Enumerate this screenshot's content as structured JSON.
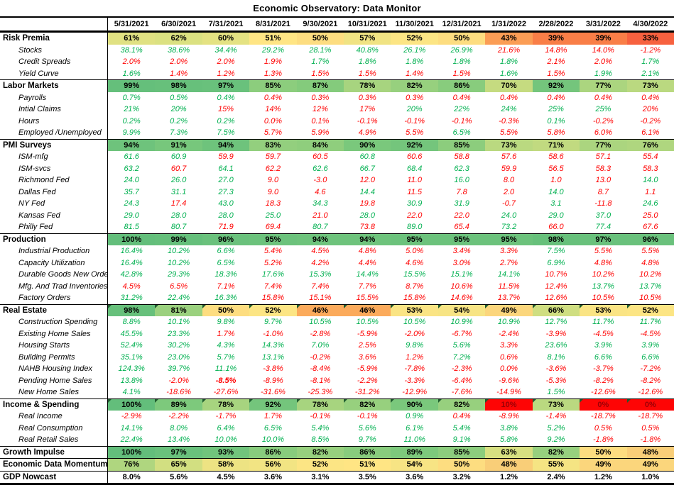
{
  "palette": {
    "up": "#00B050",
    "down": "#FF0000",
    "dark_red": "#9C0006",
    "heat_text": "#000000"
  },
  "heat_stops": [
    [
      0,
      "#FE0505"
    ],
    [
      10,
      "#FE0505"
    ],
    [
      33,
      "#F7613F"
    ],
    [
      39,
      "#F97E47"
    ],
    [
      43,
      "#FB9D55"
    ],
    [
      46,
      "#FBAA5B"
    ],
    [
      48,
      "#F9CE78"
    ],
    [
      51,
      "#FFE584"
    ],
    [
      58,
      "#EDE383"
    ],
    [
      63,
      "#D7E081"
    ],
    [
      70,
      "#C5DB80"
    ],
    [
      76,
      "#AFD67F"
    ],
    [
      82,
      "#97D07E"
    ],
    [
      88,
      "#80CA7C"
    ],
    [
      94,
      "#6EC37C"
    ],
    [
      100,
      "#63BE7B"
    ]
  ],
  "chart_data": {
    "type": "table",
    "title": "Economic Observatory: Data Monitor",
    "columns": [
      "5/31/2021",
      "6/30/2021",
      "7/31/2021",
      "8/31/2021",
      "9/30/2021",
      "10/31/2021",
      "11/30/2021",
      "12/31/2021",
      "1/31/2022",
      "2/28/2022",
      "3/31/2022",
      "4/30/2022"
    ],
    "rows": [
      {
        "label": "Risk Premia",
        "type": "heat",
        "section_start": true,
        "values": [
          61,
          62,
          60,
          51,
          50,
          57,
          52,
          50,
          43,
          39,
          39,
          33
        ]
      },
      {
        "label": "Stocks",
        "type": "detail",
        "values": [
          "38.1%",
          "38.6%",
          "34.4%",
          "29.2%",
          "28.1%",
          "40.8%",
          "26.1%",
          "26.9%",
          "21.6%",
          "14.8%",
          "14.0%",
          "-1.2%"
        ],
        "colors": [
          "g",
          "g",
          "g",
          "g",
          "g",
          "g",
          "g",
          "g",
          "r",
          "r",
          "r",
          "r"
        ]
      },
      {
        "label": "Credit Spreads",
        "type": "detail",
        "values": [
          "2.0%",
          "2.0%",
          "2.0%",
          "1.9%",
          "1.7%",
          "1.8%",
          "1.8%",
          "1.8%",
          "1.8%",
          "2.1%",
          "2.0%",
          "1.7%"
        ],
        "colors": [
          "r",
          "r",
          "r",
          "r",
          "g",
          "g",
          "g",
          "g",
          "g",
          "r",
          "r",
          "g"
        ]
      },
      {
        "label": "Yield Curve",
        "type": "detail",
        "values": [
          "1.6%",
          "1.4%",
          "1.2%",
          "1.3%",
          "1.5%",
          "1.5%",
          "1.4%",
          "1.5%",
          "1.6%",
          "1.5%",
          "1.9%",
          "2.1%"
        ],
        "colors": [
          "g",
          "r",
          "r",
          "r",
          "r",
          "r",
          "r",
          "r",
          "g",
          "r",
          "g",
          "g"
        ]
      },
      {
        "label": "Labor Markets",
        "type": "heat",
        "section_start": true,
        "values": [
          99,
          98,
          97,
          85,
          87,
          78,
          82,
          86,
          70,
          92,
          77,
          73
        ]
      },
      {
        "label": "Payrolls",
        "type": "detail",
        "values": [
          "0.7%",
          "0.5%",
          "0.4%",
          "0.4%",
          "0.3%",
          "0.3%",
          "0.3%",
          "0.4%",
          "0.4%",
          "0.4%",
          "0.4%",
          "0.4%"
        ],
        "colors": [
          "g",
          "g",
          "g",
          "r",
          "r",
          "r",
          "r",
          "r",
          "r",
          "r",
          "r",
          "r"
        ]
      },
      {
        "label": "Intial Claims",
        "type": "detail",
        "values": [
          "21%",
          "20%",
          "15%",
          "14%",
          "12%",
          "17%",
          "20%",
          "22%",
          "24%",
          "25%",
          "25%",
          "20%"
        ],
        "colors": [
          "g",
          "g",
          "r",
          "r",
          "r",
          "r",
          "g",
          "g",
          "g",
          "g",
          "g",
          "r"
        ]
      },
      {
        "label": "Hours",
        "type": "detail",
        "values": [
          "0.2%",
          "0.2%",
          "0.2%",
          "0.0%",
          "0.1%",
          "-0.1%",
          "-0.1%",
          "-0.1%",
          "-0.3%",
          "0.1%",
          "-0.2%",
          "-0.2%"
        ],
        "colors": [
          "g",
          "g",
          "g",
          "r",
          "r",
          "r",
          "r",
          "r",
          "r",
          "g",
          "r",
          "r"
        ]
      },
      {
        "label": "Employed /Unemployed",
        "type": "detail",
        "values": [
          "9.9%",
          "7.3%",
          "7.5%",
          "5.7%",
          "5.9%",
          "4.9%",
          "5.5%",
          "6.5%",
          "5.5%",
          "5.8%",
          "6.0%",
          "6.1%"
        ],
        "colors": [
          "g",
          "g",
          "g",
          "r",
          "r",
          "r",
          "r",
          "g",
          "r",
          "r",
          "r",
          "r"
        ]
      },
      {
        "label": "PMI Surveys",
        "type": "heat",
        "section_start": true,
        "values": [
          94,
          91,
          94,
          83,
          84,
          90,
          92,
          85,
          73,
          71,
          77,
          76
        ]
      },
      {
        "label": "ISM-mfg",
        "type": "detail",
        "values": [
          "61.6",
          "60.9",
          "59.9",
          "59.7",
          "60.5",
          "60.8",
          "60.6",
          "58.8",
          "57.6",
          "58.6",
          "57.1",
          "55.4"
        ],
        "colors": [
          "g",
          "g",
          "r",
          "r",
          "r",
          "g",
          "r",
          "r",
          "r",
          "r",
          "r",
          "r"
        ]
      },
      {
        "label": "ISM-svcs",
        "type": "detail",
        "values": [
          "63.2",
          "60.7",
          "64.1",
          "62.2",
          "62.6",
          "66.7",
          "68.4",
          "62.3",
          "59.9",
          "56.5",
          "58.3",
          "58.3"
        ],
        "colors": [
          "g",
          "r",
          "g",
          "r",
          "g",
          "g",
          "g",
          "g",
          "r",
          "r",
          "r",
          "r"
        ]
      },
      {
        "label": "Richmond Fed",
        "type": "detail",
        "values": [
          "24.0",
          "26.0",
          "27.0",
          "9.0",
          "-3.0",
          "12.0",
          "11.0",
          "16.0",
          "8.0",
          "1.0",
          "13.0",
          "14.0"
        ],
        "colors": [
          "g",
          "g",
          "g",
          "r",
          "r",
          "r",
          "r",
          "g",
          "r",
          "r",
          "r",
          "g"
        ]
      },
      {
        "label": "Dallas Fed",
        "type": "detail",
        "values": [
          "35.7",
          "31.1",
          "27.3",
          "9.0",
          "4.6",
          "14.4",
          "11.5",
          "7.8",
          "2.0",
          "14.0",
          "8.7",
          "1.1"
        ],
        "colors": [
          "g",
          "g",
          "g",
          "r",
          "r",
          "g",
          "r",
          "r",
          "r",
          "g",
          "r",
          "r"
        ]
      },
      {
        "label": "NY Fed",
        "type": "detail",
        "values": [
          "24.3",
          "17.4",
          "43.0",
          "18.3",
          "34.3",
          "19.8",
          "30.9",
          "31.9",
          "-0.7",
          "3.1",
          "-11.8",
          "24.6"
        ],
        "colors": [
          "g",
          "r",
          "g",
          "r",
          "g",
          "r",
          "g",
          "g",
          "r",
          "g",
          "r",
          "g"
        ]
      },
      {
        "label": "Kansas Fed",
        "type": "detail",
        "values": [
          "29.0",
          "28.0",
          "28.0",
          "25.0",
          "21.0",
          "28.0",
          "22.0",
          "22.0",
          "24.0",
          "29.0",
          "37.0",
          "25.0"
        ],
        "colors": [
          "g",
          "g",
          "g",
          "g",
          "r",
          "g",
          "r",
          "r",
          "g",
          "g",
          "g",
          "r"
        ]
      },
      {
        "label": "Philly Fed",
        "type": "detail",
        "values": [
          "81.5",
          "80.7",
          "71.9",
          "69.4",
          "80.7",
          "73.8",
          "89.0",
          "65.4",
          "73.2",
          "66.0",
          "77.4",
          "67.6"
        ],
        "colors": [
          "g",
          "g",
          "r",
          "r",
          "g",
          "r",
          "g",
          "r",
          "g",
          "r",
          "g",
          "r"
        ]
      },
      {
        "label": "Production",
        "type": "heat",
        "section_start": true,
        "values": [
          100,
          99,
          96,
          95,
          94,
          94,
          95,
          95,
          95,
          98,
          97,
          96
        ]
      },
      {
        "label": "Industrial Production",
        "type": "detail",
        "values": [
          "16.4%",
          "10.2%",
          "6.6%",
          "5.4%",
          "4.5%",
          "4.8%",
          "5.0%",
          "3.4%",
          "3.3%",
          "7.5%",
          "5.5%",
          "5.5%"
        ],
        "colors": [
          "g",
          "g",
          "g",
          "r",
          "r",
          "r",
          "r",
          "r",
          "r",
          "g",
          "r",
          "r"
        ]
      },
      {
        "label": "Capacity Utilization",
        "type": "detail",
        "values": [
          "16.4%",
          "10.2%",
          "6.5%",
          "5.2%",
          "4.2%",
          "4.4%",
          "4.6%",
          "3.0%",
          "2.7%",
          "6.9%",
          "4.8%",
          "4.8%"
        ],
        "colors": [
          "g",
          "g",
          "g",
          "r",
          "r",
          "r",
          "r",
          "r",
          "r",
          "g",
          "r",
          "r"
        ]
      },
      {
        "label": "Durable Goods New Orders",
        "type": "detail",
        "values": [
          "42.8%",
          "29.3%",
          "18.3%",
          "17.6%",
          "15.3%",
          "14.4%",
          "15.5%",
          "15.1%",
          "14.1%",
          "10.7%",
          "10.2%",
          "10.2%"
        ],
        "colors": [
          "g",
          "g",
          "g",
          "g",
          "g",
          "g",
          "g",
          "g",
          "g",
          "r",
          "r",
          "r"
        ]
      },
      {
        "label": "Mfg. And Trad Inventories",
        "type": "detail",
        "values": [
          "4.5%",
          "6.5%",
          "7.1%",
          "7.4%",
          "7.4%",
          "7.7%",
          "8.7%",
          "10.6%",
          "11.5%",
          "12.4%",
          "13.7%",
          "13.7%"
        ],
        "colors": [
          "r",
          "r",
          "r",
          "r",
          "r",
          "r",
          "r",
          "r",
          "r",
          "r",
          "g",
          "g"
        ]
      },
      {
        "label": "Factory Orders",
        "type": "detail",
        "values": [
          "31.2%",
          "22.4%",
          "16.3%",
          "15.8%",
          "15.1%",
          "15.5%",
          "15.8%",
          "14.6%",
          "13.7%",
          "12.6%",
          "10.5%",
          "10.5%"
        ],
        "colors": [
          "g",
          "g",
          "g",
          "r",
          "r",
          "r",
          "r",
          "r",
          "r",
          "r",
          "r",
          "r"
        ]
      },
      {
        "label": "Real Estate",
        "type": "heat",
        "section_start": true,
        "flags": true,
        "values": [
          98,
          81,
          50,
          52,
          46,
          46,
          53,
          54,
          49,
          66,
          53,
          52
        ]
      },
      {
        "label": "Construction Spending",
        "type": "detail",
        "values": [
          "8.8%",
          "10.1%",
          "9.8%",
          "9.7%",
          "10.5%",
          "10.5%",
          "10.5%",
          "10.9%",
          "10.9%",
          "12.7%",
          "11.7%",
          "11.7%"
        ],
        "colors": [
          "g",
          "g",
          "g",
          "g",
          "g",
          "g",
          "g",
          "g",
          "g",
          "g",
          "g",
          "g"
        ]
      },
      {
        "label": "Existing Home Sales",
        "type": "detail",
        "values": [
          "45.5%",
          "23.3%",
          "1.7%",
          "-1.0%",
          "-2.8%",
          "-5.9%",
          "-2.0%",
          "-6.7%",
          "-2.4%",
          "-3.9%",
          "-4.5%",
          "-4.5%"
        ],
        "colors": [
          "g",
          "g",
          "r",
          "r",
          "r",
          "r",
          "r",
          "r",
          "r",
          "r",
          "r",
          "r"
        ]
      },
      {
        "label": "Housing Starts",
        "type": "detail",
        "values": [
          "52.4%",
          "30.2%",
          "4.3%",
          "14.3%",
          "7.0%",
          "2.5%",
          "9.8%",
          "5.6%",
          "3.3%",
          "23.6%",
          "3.9%",
          "3.9%"
        ],
        "colors": [
          "g",
          "g",
          "g",
          "g",
          "g",
          "r",
          "g",
          "g",
          "r",
          "g",
          "g",
          "g"
        ]
      },
      {
        "label": "Building Permits",
        "type": "detail",
        "values": [
          "35.1%",
          "23.0%",
          "5.7%",
          "13.1%",
          "-0.2%",
          "3.6%",
          "1.2%",
          "7.2%",
          "0.6%",
          "8.1%",
          "6.6%",
          "6.6%"
        ],
        "colors": [
          "g",
          "g",
          "g",
          "g",
          "r",
          "r",
          "r",
          "g",
          "r",
          "g",
          "g",
          "g"
        ]
      },
      {
        "label": "NAHB Housing Index",
        "type": "detail",
        "values": [
          "124.3%",
          "39.7%",
          "11.1%",
          "-3.8%",
          "-8.4%",
          "-5.9%",
          "-7.8%",
          "-2.3%",
          "0.0%",
          "-3.6%",
          "-3.7%",
          "-7.2%"
        ],
        "colors": [
          "g",
          "g",
          "g",
          "r",
          "r",
          "r",
          "r",
          "r",
          "r",
          "r",
          "r",
          "r"
        ]
      },
      {
        "label": "Pending Home Sales",
        "type": "detail",
        "values": [
          "13.8%",
          "-2.0%",
          "-8.5%",
          "-8.9%",
          "-8.1%",
          "-2.2%",
          "-3.3%",
          "-6.4%",
          "-9.6%",
          "-5.3%",
          "-8.2%",
          "-8.2%"
        ],
        "colors": [
          "g",
          "r",
          "rb",
          "r",
          "r",
          "r",
          "r",
          "r",
          "r",
          "r",
          "r",
          "r"
        ]
      },
      {
        "label": "New Home Sales",
        "type": "detail",
        "values": [
          "4.1%",
          "-18.6%",
          "-27.6%",
          "-31.6%",
          "-25.3%",
          "-31.2%",
          "-12.9%",
          "-7.6%",
          "-14.9%",
          "1.5%",
          "-12.6%",
          "-12.6%"
        ],
        "colors": [
          "g",
          "r",
          "r",
          "r",
          "r",
          "r",
          "r",
          "r",
          "r",
          "g",
          "r",
          "r"
        ]
      },
      {
        "label": "Income & Spending",
        "type": "heat",
        "section_start": true,
        "flags": true,
        "values": [
          100,
          89,
          78,
          92,
          78,
          82,
          90,
          82,
          10,
          73,
          0,
          0
        ]
      },
      {
        "label": "Real Income",
        "type": "detail",
        "values": [
          "-2.9%",
          "-2.2%",
          "-1.7%",
          "1.7%",
          "-0.1%",
          "-0.1%",
          "0.9%",
          "0.4%",
          "-8.9%",
          "-1.4%",
          "-18.7%",
          "-18.7%"
        ],
        "colors": [
          "r",
          "r",
          "r",
          "r",
          "r",
          "r",
          "g",
          "r",
          "r",
          "r",
          "r",
          "r"
        ]
      },
      {
        "label": "Real Consumption",
        "type": "detail",
        "values": [
          "14.1%",
          "8.0%",
          "6.4%",
          "6.5%",
          "5.4%",
          "5.6%",
          "6.1%",
          "5.4%",
          "3.8%",
          "5.2%",
          "0.5%",
          "0.5%"
        ],
        "colors": [
          "g",
          "g",
          "g",
          "g",
          "g",
          "g",
          "g",
          "g",
          "g",
          "g",
          "r",
          "r"
        ]
      },
      {
        "label": "Real Retail Sales",
        "type": "detail",
        "values": [
          "22.4%",
          "13.4%",
          "10.0%",
          "10.0%",
          "8.5%",
          "9.7%",
          "11.0%",
          "9.1%",
          "5.8%",
          "9.2%",
          "-1.8%",
          "-1.8%"
        ],
        "colors": [
          "g",
          "g",
          "g",
          "g",
          "g",
          "g",
          "g",
          "g",
          "g",
          "g",
          "r",
          "r"
        ]
      },
      {
        "label": "Growth Impulse",
        "type": "heat",
        "section_start": true,
        "values": [
          100,
          97,
          93,
          86,
          82,
          86,
          89,
          85,
          63,
          82,
          50,
          48
        ]
      },
      {
        "label": "Economic Data Momentum",
        "type": "heat",
        "section_start": true,
        "values": [
          76,
          65,
          58,
          56,
          52,
          51,
          54,
          50,
          48,
          55,
          49,
          49
        ]
      },
      {
        "label": "GDP Nowcast",
        "type": "plain",
        "section_start": true,
        "values": [
          "8.0%",
          "5.6%",
          "4.5%",
          "3.6%",
          "3.1%",
          "3.5%",
          "3.6%",
          "3.2%",
          "1.2%",
          "2.4%",
          "1.2%",
          "1.0%"
        ]
      }
    ]
  }
}
